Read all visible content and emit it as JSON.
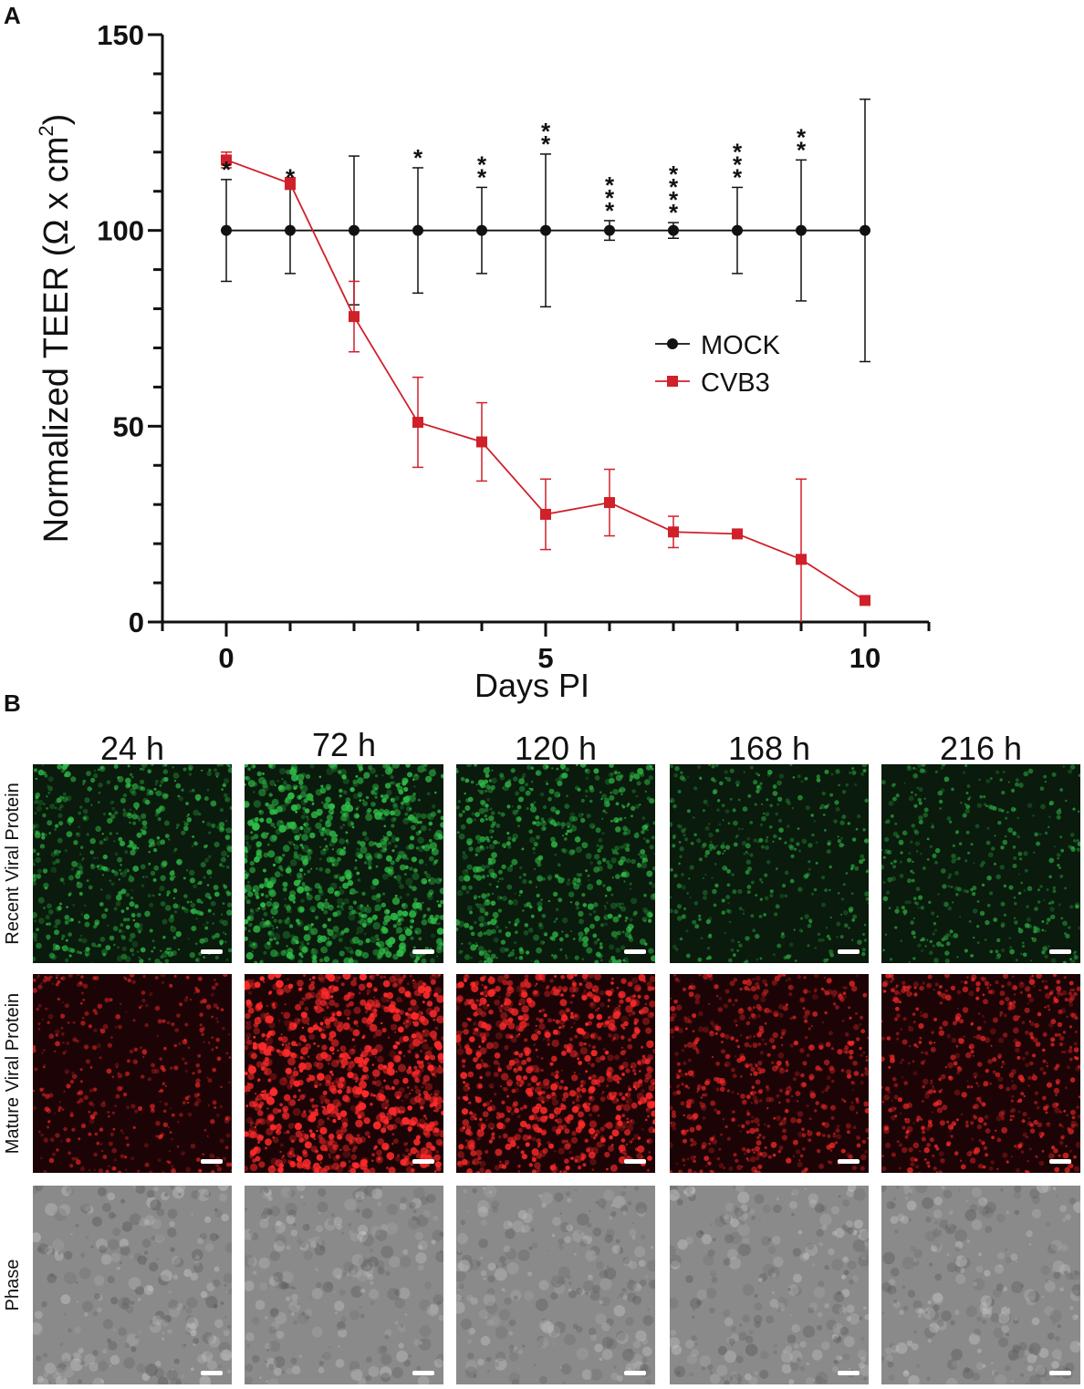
{
  "panels": {
    "a_label": "A",
    "b_label": "B"
  },
  "chart_data": {
    "type": "line",
    "xlabel": "Days PI",
    "ylabel_main": "Normalized TEER (Ω x cm",
    "ylabel_sup": "2",
    "ylabel_end": ")",
    "xlim": [
      -1,
      11
    ],
    "ylim": [
      0,
      150
    ],
    "xticks": [
      0,
      5,
      10
    ],
    "yticks": [
      0,
      50,
      100,
      150
    ],
    "grid": false,
    "legend_position": "right-middle",
    "series": [
      {
        "name": "MOCK",
        "color": "#111111",
        "marker": "circle",
        "x": [
          0,
          1,
          2,
          3,
          4,
          5,
          6,
          7,
          8,
          9,
          10
        ],
        "y": [
          100,
          100,
          100,
          100,
          100,
          100,
          100,
          100,
          100,
          100,
          100
        ],
        "err": [
          13,
          11,
          19,
          16,
          11,
          19.5,
          2.5,
          2,
          11,
          18,
          33.5
        ]
      },
      {
        "name": "CVB3",
        "color": "#d0202a",
        "marker": "square",
        "x": [
          0,
          1,
          2,
          3,
          4,
          5,
          6,
          7,
          8,
          9,
          10
        ],
        "y": [
          118,
          112,
          78,
          51,
          46,
          27.5,
          30.5,
          23,
          22.5,
          16,
          5.5
        ],
        "err": [
          2,
          1.5,
          9,
          11.5,
          10,
          9,
          8.5,
          4,
          0,
          20.5,
          0
        ]
      }
    ],
    "annotations": [
      {
        "x": 0,
        "text": "*"
      },
      {
        "x": 1,
        "text": "*"
      },
      {
        "x": 3,
        "text": "*"
      },
      {
        "x": 4,
        "text": "**"
      },
      {
        "x": 5,
        "text": "**"
      },
      {
        "x": 6,
        "text": "***"
      },
      {
        "x": 7,
        "text": "****"
      },
      {
        "x": 8,
        "text": "***"
      },
      {
        "x": 9,
        "text": "**"
      }
    ]
  },
  "micrographs": {
    "columns": [
      "24 h",
      "72 h",
      "120 h",
      "168 h",
      "216 h"
    ],
    "rows": [
      {
        "label": "Recent Viral Protein",
        "channel": "green",
        "bg": "#0a1a0c",
        "dot": "#2fbf48",
        "intensity": [
          0.55,
          0.85,
          0.6,
          0.3,
          0.3
        ]
      },
      {
        "label": "Mature Viral Protein",
        "channel": "red",
        "bg": "#1c0406",
        "dot": "#ff2a2a",
        "intensity": [
          0.3,
          1.0,
          0.85,
          0.5,
          0.5
        ]
      },
      {
        "label": "Phase",
        "channel": "gray",
        "bg": "#8a8a8a",
        "dot": "#dcdcdc",
        "intensity": [
          0.4,
          0.6,
          0.6,
          0.45,
          0.5
        ]
      }
    ]
  }
}
